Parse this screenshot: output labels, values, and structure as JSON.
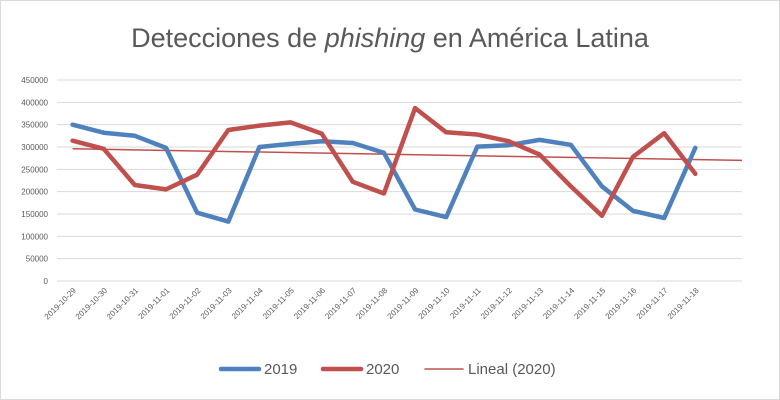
{
  "chart_data": {
    "type": "line",
    "title": {
      "prefix": "Detecciones de ",
      "emphasis": "phishing",
      "suffix": " en América Latina"
    },
    "categories": [
      "2019-10-29",
      "2019-10-30",
      "2019-10-31",
      "2019-11-01",
      "2019-11-02",
      "2019-11-03",
      "2019-11-04",
      "2019-11-05",
      "2019-11-06",
      "2019-11-07",
      "2019-11-08",
      "2019-11-09",
      "2019-11-10",
      "2019-11-11",
      "2019-11-12",
      "2019-11-13",
      "2019-11-14",
      "2019-11-15",
      "2019-11-16",
      "2019-11-17",
      "2019-11-18"
    ],
    "y_ticks": [
      "0",
      "50000",
      "100000",
      "150000",
      "200000",
      "250000",
      "300000",
      "350000",
      "400000",
      "450000"
    ],
    "ylim": [
      0,
      450000
    ],
    "grid": true,
    "legend_position": "bottom",
    "series": [
      {
        "name": "2019",
        "color": "#4e81bd",
        "values": [
          350000,
          332000,
          325000,
          298000,
          153000,
          133000,
          300000,
          307000,
          313000,
          309000,
          287000,
          160000,
          143000,
          301000,
          304000,
          316000,
          305000,
          212000,
          157000,
          141000,
          298000
        ]
      },
      {
        "name": "2020",
        "color": "#c0504d",
        "values": [
          314000,
          296000,
          215000,
          205000,
          238000,
          338000,
          348000,
          355000,
          330000,
          222000,
          196000,
          387000,
          333000,
          328000,
          313000,
          283000,
          212000,
          146000,
          278000,
          331000,
          240000
        ]
      }
    ],
    "trendline": {
      "name": "Lineal (2020)",
      "color": "#c0504d",
      "start": 296000,
      "end": 270000
    }
  }
}
